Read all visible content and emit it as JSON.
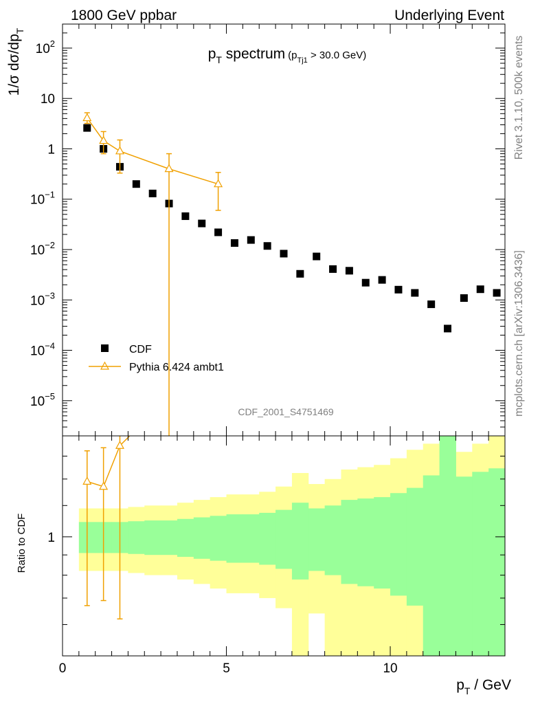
{
  "header": {
    "left": "1800 GeV ppbar",
    "right": "Underlying Event",
    "side_top": "Rivet 3.1.10,  500k events",
    "side_bottom": "mcplots.cern.ch [arXiv:1306.3436]"
  },
  "chart_data": [
    {
      "type": "scatter",
      "title_main": "p",
      "title_main_sub": "T",
      "title_main_rest": " spectrum",
      "title_cut": "(p",
      "title_cut_sub": "Tj1",
      "title_cut_rest": " > 30.0 GeV)",
      "watermark": "CDF_2001_S4751469",
      "ylabel": "1/σ dσ/dp",
      "ylabel_sub": "T",
      "yscale": "log",
      "ylim": [
        2e-06,
        300
      ],
      "xlim": [
        0,
        13.5
      ],
      "y_ticks": [
        {
          "base": "10",
          "exp": "2",
          "value": 100
        },
        {
          "base": "10",
          "exp": "",
          "value": 10
        },
        {
          "base": "1",
          "exp": "",
          "value": 1
        },
        {
          "base": "10",
          "exp": "−1",
          "value": 0.1
        },
        {
          "base": "10",
          "exp": "−2",
          "value": 0.01
        },
        {
          "base": "10",
          "exp": "−3",
          "value": 0.001
        },
        {
          "base": "10",
          "exp": "−4",
          "value": 0.0001
        },
        {
          "base": "10",
          "exp": "−5",
          "value": 1e-05
        }
      ],
      "legend": {
        "position": "bottom-left",
        "cdf": "CDF",
        "pythia": "Pythia 6.424 ambt1"
      },
      "series": [
        {
          "name": "CDF",
          "marker": "square",
          "color": "#000000",
          "x": [
            0.75,
            1.25,
            1.75,
            2.25,
            2.75,
            3.25,
            3.75,
            4.25,
            4.75,
            5.25,
            5.75,
            6.25,
            6.75,
            7.25,
            7.75,
            8.25,
            8.75,
            9.25,
            9.75,
            10.25,
            10.75,
            11.25,
            11.75,
            12.25,
            12.75,
            13.25
          ],
          "y": [
            2.6,
            1.0,
            0.44,
            0.2,
            0.13,
            0.082,
            0.046,
            0.033,
            0.022,
            0.0135,
            0.0155,
            0.0118,
            0.0083,
            0.0033,
            0.0073,
            0.0041,
            0.0038,
            0.0022,
            0.0025,
            0.0016,
            0.00138,
            0.00082,
            0.00027,
            0.00109,
            0.00163,
            0.00138
          ]
        },
        {
          "name": "Pythia 6.424 ambt1",
          "marker": "triangle",
          "color": "#f0a000",
          "x": [
            0.75,
            1.25,
            1.75,
            3.25,
            4.75
          ],
          "y": [
            4.1,
            1.45,
            0.9,
            0.4,
            0.2
          ],
          "err_lo": [
            3.2,
            0.8,
            0.33,
            2e-06,
            0.06
          ],
          "err_hi": [
            5.2,
            2.2,
            1.5,
            0.8,
            0.34
          ]
        }
      ]
    },
    {
      "type": "ratio",
      "ylabel": "Ratio to CDF",
      "xlabel": "p",
      "xlabel_sub": "T",
      "xlabel_rest": " / GeV",
      "ylim": [
        0.5,
        1.8
      ],
      "y_tick_labels": [
        {
          "label": "1",
          "value": 1.0
        }
      ],
      "x_tick_labels": [
        {
          "label": "0",
          "value": 0
        },
        {
          "label": "5",
          "value": 5
        },
        {
          "label": "10",
          "value": 10
        }
      ],
      "bins_lo": [
        0.5,
        1.0,
        1.5,
        2.0,
        2.5,
        3.0,
        3.5,
        4.0,
        4.5,
        5.0,
        5.5,
        6.0,
        6.5,
        7.0,
        7.5,
        8.0,
        8.5,
        9.0,
        9.5,
        10.0,
        10.5,
        11.0,
        11.5,
        12.0,
        12.5,
        13.0
      ],
      "bins_hi": [
        1.0,
        1.5,
        2.0,
        2.5,
        3.0,
        3.5,
        4.0,
        4.5,
        5.0,
        5.5,
        6.0,
        6.5,
        7.0,
        7.5,
        8.0,
        8.5,
        9.0,
        9.5,
        10.0,
        10.5,
        11.0,
        11.5,
        12.0,
        12.5,
        13.0,
        13.5
      ],
      "band_green_lo": [
        0.91,
        0.91,
        0.91,
        0.905,
        0.9,
        0.9,
        0.89,
        0.88,
        0.87,
        0.86,
        0.86,
        0.85,
        0.83,
        0.78,
        0.82,
        0.8,
        0.76,
        0.75,
        0.74,
        0.71,
        0.67,
        0.5,
        0.5,
        0.5,
        0.5,
        0.5
      ],
      "band_green_hi": [
        1.09,
        1.09,
        1.09,
        1.095,
        1.1,
        1.1,
        1.11,
        1.12,
        1.13,
        1.14,
        1.14,
        1.15,
        1.17,
        1.22,
        1.18,
        1.2,
        1.24,
        1.25,
        1.26,
        1.29,
        1.33,
        1.43,
        1.8,
        1.42,
        1.46,
        1.49
      ],
      "band_yellow_lo": [
        0.82,
        0.82,
        0.82,
        0.81,
        0.8,
        0.8,
        0.78,
        0.76,
        0.74,
        0.72,
        0.72,
        0.7,
        0.66,
        0.5,
        0.64,
        0.5,
        0.5,
        0.5,
        0.5,
        0.5,
        0.5,
        0.5,
        0.5,
        0.5,
        0.5,
        0.5
      ],
      "band_yellow_hi": [
        1.18,
        1.18,
        1.18,
        1.19,
        1.2,
        1.2,
        1.22,
        1.24,
        1.26,
        1.28,
        1.28,
        1.3,
        1.34,
        1.45,
        1.36,
        1.4,
        1.48,
        1.5,
        1.52,
        1.58,
        1.66,
        1.72,
        1.8,
        1.64,
        1.72,
        1.8
      ],
      "pythia": {
        "x": [
          0.75,
          1.25,
          1.75
        ],
        "y": [
          1.38,
          1.34,
          1.7
        ],
        "err_lo": [
          0.67,
          0.69,
          0.62
        ],
        "err_hi": [
          1.65,
          1.68,
          1.8
        ]
      }
    }
  ]
}
